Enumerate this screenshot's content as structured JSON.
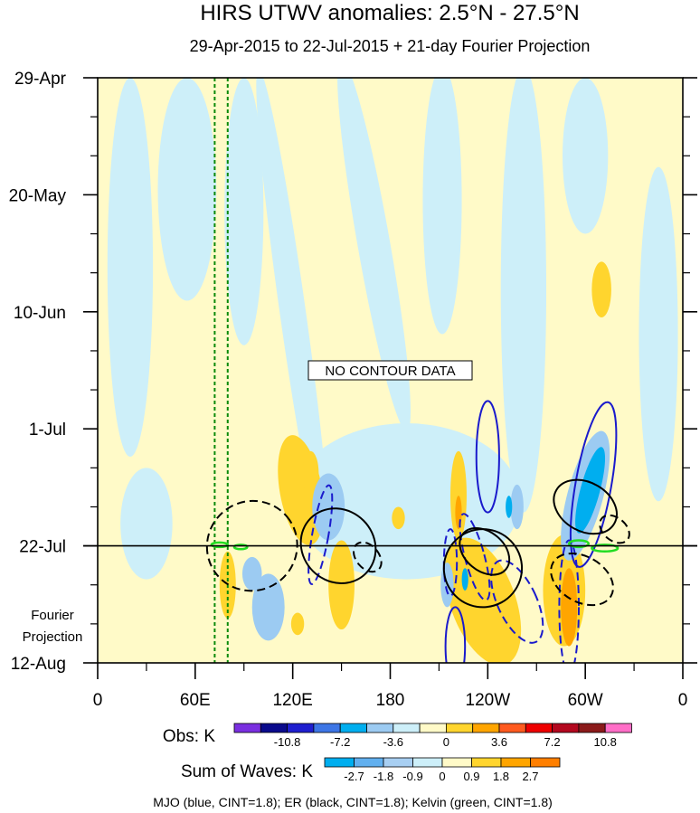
{
  "chart_data": {
    "type": "heatmap",
    "title": "HIRS UTWV anomalies: 2.5°N - 27.5°N",
    "subtitle": "29-Apr-2015 to 22-Jul-2015 + 21-day Fourier Projection",
    "x_ticks": [
      {
        "lon": 0,
        "label": "0"
      },
      {
        "lon": 60,
        "label": "60E"
      },
      {
        "lon": 120,
        "label": "120E"
      },
      {
        "lon": 180,
        "label": "180"
      },
      {
        "lon": 240,
        "label": "120W"
      },
      {
        "lon": 300,
        "label": "60W"
      },
      {
        "lon": 360,
        "label": "0"
      }
    ],
    "xlim": [
      0,
      360
    ],
    "y_ticks": [
      {
        "day": 0,
        "label": "29-Apr"
      },
      {
        "day": 21,
        "label": "20-May"
      },
      {
        "day": 42,
        "label": "10-Jun"
      },
      {
        "day": 63,
        "label": "1-Jul"
      },
      {
        "day": 84,
        "label": "22-Jul"
      },
      {
        "day": 105,
        "label": "12-Aug"
      }
    ],
    "ylim_days": [
      0,
      105
    ],
    "forecast_start_day": 84,
    "forecast_label_line1": "Fourier",
    "forecast_label_line2": "Projection",
    "annotation": "NO CONTOUR DATA",
    "reference_lines_lon": [
      72,
      80
    ],
    "obs_colorbar": {
      "label": "Obs: K",
      "colors": [
        "#7a2fe0",
        "#0a0a8c",
        "#1f1fcf",
        "#3d76e6",
        "#00aeef",
        "#9ccbf2",
        "#cdeff9",
        "#fffac8",
        "#ffd52e",
        "#ffa500",
        "#ff5a1f",
        "#ee0000",
        "#b3081f",
        "#8b1a1a",
        "#ff6ec7"
      ],
      "tick_labels": [
        "-10.8",
        "-7.2",
        "-3.6",
        "0",
        "3.6",
        "7.2",
        "10.8"
      ]
    },
    "waves_colorbar": {
      "label": "Sum of Waves: K",
      "colors": [
        "#00aeef",
        "#62b0ef",
        "#a8cff2",
        "#cdeff9",
        "#fffac8",
        "#ffd52e",
        "#ffa500",
        "#ff7f00"
      ],
      "tick_labels": [
        "-2.7",
        "-1.8",
        "-0.9",
        "0",
        "0.9",
        "1.8",
        "2.7"
      ]
    },
    "legend_text": "MJO (blue, CINT=1.8); ER (black, CINT=1.8); Kelvin (green, CINT=1.8)",
    "colors": {
      "background_field": "#fffac8",
      "negative_field": "#cdeff9",
      "mjo": "#1a1acc",
      "er": "#000000",
      "kelvin": "#22dd22",
      "reference_lines": "#0a8a0a"
    },
    "anomaly_patches": [
      {
        "lon": 125,
        "day": 74,
        "rlon": 13,
        "rday": 10,
        "rot": -10,
        "color": "#ffd52e"
      },
      {
        "lon": 131,
        "day": 71,
        "rlon": 5,
        "rday": 4,
        "rot": 0,
        "color": "#ffd52e"
      },
      {
        "lon": 80,
        "day": 91,
        "rlon": 5,
        "rday": 6,
        "rot": 0,
        "color": "#ffd52e"
      },
      {
        "lon": 150,
        "day": 91,
        "rlon": 8,
        "rday": 8,
        "rot": 0,
        "color": "#ffd52e"
      },
      {
        "lon": 123,
        "day": 98,
        "rlon": 4,
        "rday": 2,
        "rot": 0,
        "color": "#ffd52e"
      },
      {
        "lon": 185,
        "day": 79,
        "rlon": 4,
        "rday": 2,
        "rot": 0,
        "color": "#ffd52e"
      },
      {
        "lon": 222,
        "day": 75,
        "rlon": 5,
        "rday": 8,
        "rot": 0,
        "color": "#ffd52e"
      },
      {
        "lon": 237,
        "day": 94,
        "rlon": 20,
        "rday": 12,
        "rot": -20,
        "color": "#ffd52e"
      },
      {
        "lon": 287,
        "day": 92,
        "rlon": 13,
        "rday": 10,
        "rot": 0,
        "color": "#ffd52e"
      },
      {
        "lon": 310,
        "day": 38,
        "rlon": 6,
        "rday": 5,
        "rot": 0,
        "color": "#ffd52e"
      },
      {
        "lon": 222,
        "day": 78,
        "rlon": 2,
        "rday": 3,
        "rot": 0,
        "color": "#ffa500"
      },
      {
        "lon": 290,
        "day": 95,
        "rlon": 5,
        "rday": 7,
        "rot": 0,
        "color": "#ffa500"
      },
      {
        "lon": 300,
        "day": 75,
        "rlon": 11,
        "rday": 12,
        "rot": 15,
        "color": "#9ccbf2"
      },
      {
        "lon": 303,
        "day": 74,
        "rlon": 6,
        "rday": 8,
        "rot": 15,
        "color": "#00aeef"
      },
      {
        "lon": 95,
        "day": 89,
        "rlon": 6,
        "rday": 3,
        "rot": 0,
        "color": "#9ccbf2"
      },
      {
        "lon": 105,
        "day": 95,
        "rlon": 10,
        "rday": 6,
        "rot": 0,
        "color": "#9ccbf2"
      },
      {
        "lon": 142,
        "day": 77,
        "rlon": 10,
        "rday": 6,
        "rot": 0,
        "color": "#9ccbf2"
      },
      {
        "lon": 215,
        "day": 91,
        "rlon": 4,
        "rday": 4,
        "rot": 0,
        "color": "#9ccbf2"
      },
      {
        "lon": 258,
        "day": 77,
        "rlon": 4,
        "rday": 4,
        "rot": 0,
        "color": "#9ccbf2"
      },
      {
        "lon": 226,
        "day": 90,
        "rlon": 2,
        "rday": 2,
        "rot": 0,
        "color": "#00aeef"
      },
      {
        "lon": 253,
        "day": 77,
        "rlon": 2,
        "rday": 2,
        "rot": 0,
        "color": "#00aeef"
      }
    ],
    "negative_regions": [
      {
        "lon": 20,
        "day": 34,
        "rlon": 14,
        "rday": 34,
        "rot": 0
      },
      {
        "lon": 55,
        "day": 20,
        "rlon": 18,
        "rday": 20,
        "rot": 0
      },
      {
        "lon": 90,
        "day": 24,
        "rlon": 12,
        "rday": 24,
        "rot": 0
      },
      {
        "lon": 120,
        "day": 42,
        "rlon": 8,
        "rday": 44,
        "rot": -8
      },
      {
        "lon": 170,
        "day": 30,
        "rlon": 10,
        "rday": 34,
        "rot": -10
      },
      {
        "lon": 212,
        "day": 22,
        "rlon": 12,
        "rday": 24,
        "rot": 0
      },
      {
        "lon": 262,
        "day": 38,
        "rlon": 14,
        "rday": 40,
        "rot": 0
      },
      {
        "lon": 300,
        "day": 14,
        "rlon": 14,
        "rday": 14,
        "rot": 0
      },
      {
        "lon": 345,
        "day": 46,
        "rlon": 12,
        "rday": 30,
        "rot": 0
      },
      {
        "lon": 190,
        "day": 76,
        "rlon": 70,
        "rday": 14,
        "rot": 0
      },
      {
        "lon": 30,
        "day": 80,
        "rlon": 16,
        "rday": 10,
        "rot": 0
      }
    ],
    "mjo_contours": [
      {
        "lon": 217,
        "day": 87,
        "rlon": 4,
        "rday": 6,
        "rot": 0,
        "dashed": true
      },
      {
        "lon": 232,
        "day": 86,
        "rlon": 6,
        "rday": 8,
        "rot": -15,
        "dashed": true
      },
      {
        "lon": 258,
        "day": 94,
        "rlon": 12,
        "rday": 8,
        "rot": -25,
        "dashed": true
      },
      {
        "lon": 290,
        "day": 95,
        "rlon": 6,
        "rday": 12,
        "rot": 0,
        "dashed": true
      },
      {
        "lon": 137,
        "day": 82,
        "rlon": 5,
        "rday": 9,
        "rot": 10,
        "dashed": true
      },
      {
        "lon": 240,
        "day": 68,
        "rlon": 7,
        "rday": 10,
        "rot": 0,
        "dashed": false
      },
      {
        "lon": 305,
        "day": 73,
        "rlon": 11,
        "rday": 15,
        "rot": 10,
        "dashed": false
      },
      {
        "lon": 220,
        "day": 102,
        "rlon": 6,
        "rday": 7,
        "rot": 0,
        "dashed": false
      }
    ],
    "er_contours": [
      {
        "lon": 95,
        "day": 84,
        "rlon": 28,
        "rday": 8,
        "rot": -40,
        "dashed": true
      },
      {
        "lon": 148,
        "day": 84,
        "rlon": 22,
        "rday": 7,
        "rot": -45,
        "dashed": false
      },
      {
        "lon": 166,
        "day": 86,
        "rlon": 7,
        "rday": 3,
        "rot": -40,
        "dashed": true
      },
      {
        "lon": 237,
        "day": 88,
        "rlon": 24,
        "rday": 7,
        "rot": -50,
        "dashed": false
      },
      {
        "lon": 238,
        "day": 85,
        "rlon": 12,
        "rday": 5,
        "rot": -50,
        "dashed": false
      },
      {
        "lon": 300,
        "day": 77,
        "rlon": 15,
        "rday": 6,
        "rot": -60,
        "dashed": false
      },
      {
        "lon": 298,
        "day": 90,
        "rlon": 14,
        "rday": 6,
        "rot": -60,
        "dashed": true
      },
      {
        "lon": 318,
        "day": 81,
        "rlon": 7,
        "rday": 3,
        "rot": -50,
        "dashed": true
      }
    ],
    "kelvin_contours": [
      {
        "lon": 75,
        "day": 83.8,
        "rlon": 5,
        "rday": 0.4,
        "rot": 0
      },
      {
        "lon": 88,
        "day": 84.2,
        "rlon": 4,
        "rday": 0.4,
        "rot": 0
      },
      {
        "lon": 296,
        "day": 83.6,
        "rlon": 6,
        "rday": 0.6,
        "rot": 0
      },
      {
        "lon": 312,
        "day": 84.4,
        "rlon": 8,
        "rday": 0.6,
        "rot": 0
      }
    ]
  }
}
